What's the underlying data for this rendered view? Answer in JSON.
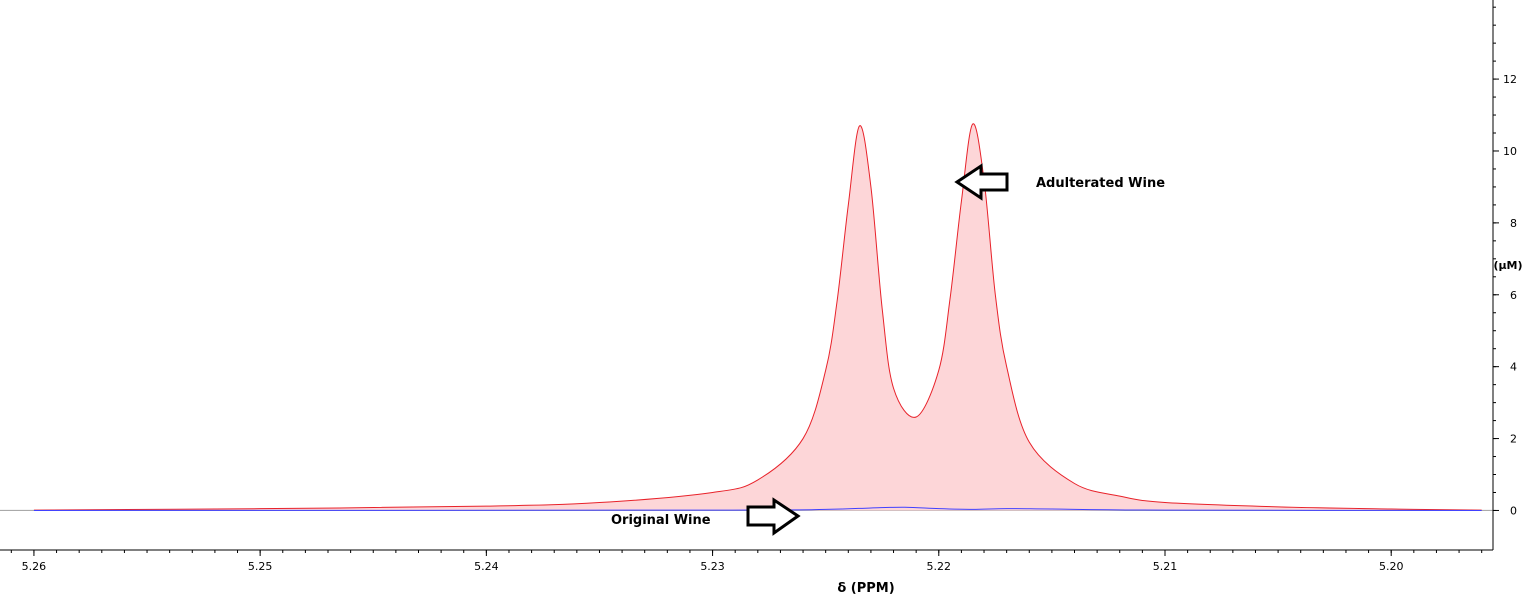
{
  "chart_data": {
    "type": "area",
    "title": "",
    "xlabel": "δ (PPM)",
    "ylabel": "(µM)",
    "x_reversed": true,
    "xlim": [
      5.2615,
      5.1955
    ],
    "ylim": [
      -1.1,
      14.2
    ],
    "x_ticks": [
      5.26,
      5.25,
      5.24,
      5.23,
      5.22,
      5.21,
      5.2
    ],
    "x_tick_labels": [
      "5.26",
      "5.25",
      "5.24",
      "5.23",
      "5.22",
      "5.21",
      "5.20"
    ],
    "y_ticks": [
      0,
      2,
      4,
      6,
      8,
      10,
      12
    ],
    "y_tick_labels": [
      "0",
      "2",
      "4",
      "6",
      "8",
      "10",
      "12"
    ],
    "grid": false,
    "series": [
      {
        "color": "#e8222a",
        "fill": "#fdd6d8",
        "x": [
          5.26,
          5.25,
          5.24,
          5.235,
          5.23,
          5.228,
          5.226,
          5.225,
          5.2245,
          5.224,
          5.2235,
          5.223,
          5.2225,
          5.222,
          5.221,
          5.22,
          5.2195,
          5.219,
          5.2185,
          5.218,
          5.2175,
          5.217,
          5.216,
          5.214,
          5.212,
          5.21,
          5.205,
          5.2,
          5.196
        ],
        "values": [
          0.01,
          0.05,
          0.12,
          0.22,
          0.5,
          0.85,
          2.0,
          3.9,
          5.8,
          8.5,
          10.7,
          9.0,
          5.6,
          3.4,
          2.6,
          3.9,
          5.9,
          8.6,
          10.75,
          9.2,
          6.0,
          4.0,
          1.9,
          0.75,
          0.4,
          0.22,
          0.1,
          0.04,
          0.01
        ]
      },
      {
        "color": "#4040ff",
        "x": [
          5.26,
          5.23,
          5.225,
          5.223,
          5.2215,
          5.22,
          5.2185,
          5.217,
          5.215,
          5.21,
          5.196
        ],
        "values": [
          0.0,
          0.01,
          0.03,
          0.07,
          0.09,
          0.05,
          0.03,
          0.05,
          0.04,
          0.01,
          0.0
        ]
      }
    ],
    "annotations": [
      {
        "text": "Adulterated Wine",
        "arrow": "left"
      },
      {
        "text": "Original Wine",
        "arrow": "right"
      }
    ]
  }
}
